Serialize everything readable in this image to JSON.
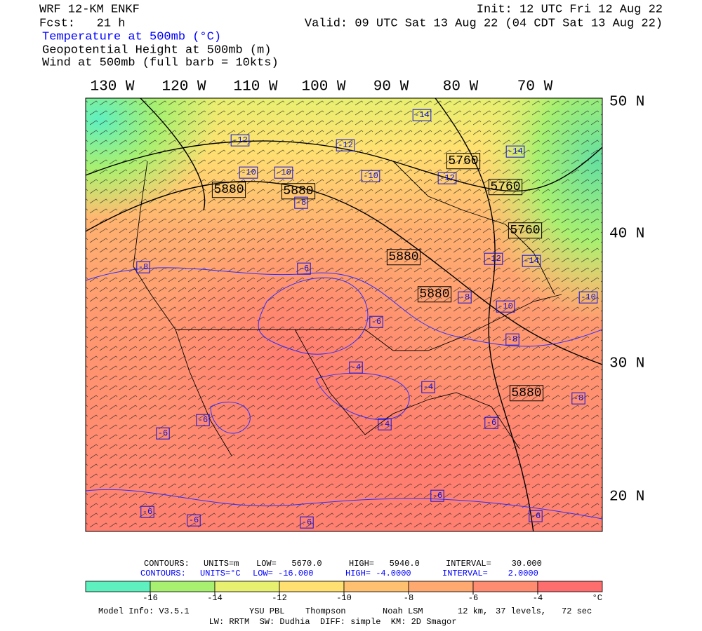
{
  "header": {
    "model": "WRF 12-KM ENKF",
    "forecast": "Fcst:   21 h",
    "init": "Init: 12 UTC Fri 12 Aug 22",
    "valid": "Valid: 09 UTC Sat 13 Aug 22 (04 CDT Sat 13 Aug 22)",
    "fields": [
      "Temperature at 500mb (°C)",
      "Geopotential Height at 500mb (m)",
      "Wind at 500mb (full barb = 10kts)"
    ]
  },
  "map": {
    "longitudes": [
      "130 W",
      "120 W",
      "110 W",
      "100 W",
      "90 W",
      "80 W",
      "70 W"
    ],
    "latitudes": [
      "50 N",
      "40 N",
      "30 N",
      "20 N"
    ],
    "height_labels": [
      "5760",
      "5760",
      "5760",
      "5880",
      "5880",
      "5880",
      "5880",
      "5880"
    ],
    "temp_labels": [
      "-14",
      "-12",
      "-12",
      "-14",
      "-10",
      "-10",
      "-10",
      "-12",
      "-8",
      "-8",
      "-6",
      "-12",
      "-14",
      "-8",
      "-10",
      "-10",
      "-6",
      "-8",
      "-4",
      "-4",
      "-8",
      "-6",
      "-6",
      "-4",
      "-6",
      "-6",
      "-6",
      "-6",
      "-6",
      "-6"
    ]
  },
  "footer": {
    "height_contours": [
      "CONTOURS:",
      "UNITS=m",
      "LOW=   5670.0",
      "HIGH=   5940.0",
      "INTERVAL=    30.000"
    ],
    "temp_contours": [
      "CONTOURS:",
      "UNITS=°C",
      "LOW= -16.000",
      "HIGH= -4.0000",
      "INTERVAL=    2.0000"
    ],
    "colorbar_labels": [
      -16,
      -14,
      -12,
      -10,
      -8,
      -6,
      -4
    ],
    "colorbar_unit": "°C",
    "model_info": [
      "Model Info: V3.5.1",
      "YSU PBL",
      "Thompson",
      "Noah LSM",
      "12 km,",
      "37 levels,",
      "72 sec"
    ],
    "physics": "LW: RRTM  SW: Dudhia  DIFF: simple  KM: 2D Smagor"
  }
}
